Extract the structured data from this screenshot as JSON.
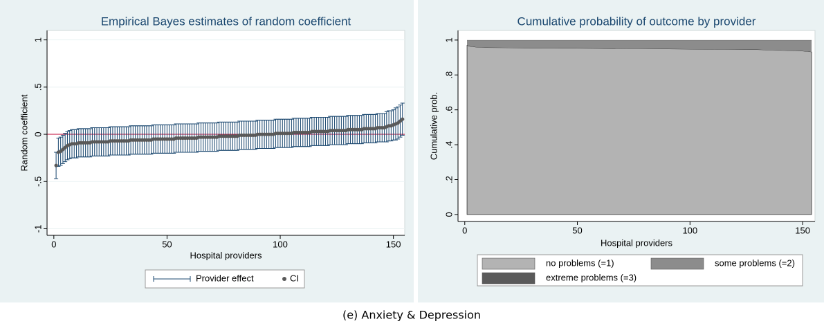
{
  "chart_data": [
    {
      "type": "errorbar",
      "title": "Empirical Bayes estimates of random coefficient",
      "x_label": "Hospital providers",
      "y_label": "Random coefficient",
      "x": [
        1,
        2,
        3,
        4,
        5,
        6,
        7,
        8,
        9,
        10,
        11,
        12,
        13,
        14,
        15,
        16,
        17,
        18,
        19,
        20,
        21,
        22,
        23,
        24,
        25,
        26,
        27,
        28,
        29,
        30,
        31,
        32,
        33,
        34,
        35,
        36,
        37,
        38,
        39,
        40,
        41,
        42,
        43,
        44,
        45,
        46,
        47,
        48,
        49,
        50,
        51,
        52,
        53,
        54,
        55,
        56,
        57,
        58,
        59,
        60,
        61,
        62,
        63,
        64,
        65,
        66,
        67,
        68,
        69,
        70,
        71,
        72,
        73,
        74,
        75,
        76,
        77,
        78,
        79,
        80,
        81,
        82,
        83,
        84,
        85,
        86,
        87,
        88,
        89,
        90,
        91,
        92,
        93,
        94,
        95,
        96,
        97,
        98,
        99,
        100,
        101,
        102,
        103,
        104,
        105,
        106,
        107,
        108,
        109,
        110,
        111,
        112,
        113,
        114,
        115,
        116,
        117,
        118,
        119,
        120,
        121,
        122,
        123,
        124,
        125,
        126,
        127,
        128,
        129,
        130,
        131,
        132,
        133,
        134,
        135,
        136,
        137,
        138,
        139,
        140,
        141,
        142,
        143,
        144,
        145,
        146,
        147,
        148,
        149,
        150,
        151,
        152,
        153,
        154
      ],
      "series": [
        {
          "name": "Provider effect",
          "color": "#1a476f",
          "values": [
            -0.33,
            -0.19,
            -0.18,
            -0.16,
            -0.14,
            -0.12,
            -0.11,
            -0.1,
            -0.1,
            -0.1,
            -0.09,
            -0.09,
            -0.09,
            -0.09,
            -0.09,
            -0.09,
            -0.08,
            -0.08,
            -0.08,
            -0.08,
            -0.08,
            -0.08,
            -0.08,
            -0.08,
            -0.07,
            -0.07,
            -0.07,
            -0.07,
            -0.07,
            -0.07,
            -0.07,
            -0.07,
            -0.07,
            -0.06,
            -0.06,
            -0.06,
            -0.06,
            -0.06,
            -0.06,
            -0.06,
            -0.06,
            -0.06,
            -0.06,
            -0.05,
            -0.05,
            -0.05,
            -0.05,
            -0.05,
            -0.05,
            -0.05,
            -0.05,
            -0.05,
            -0.05,
            -0.04,
            -0.04,
            -0.04,
            -0.04,
            -0.04,
            -0.04,
            -0.04,
            -0.04,
            -0.04,
            -0.04,
            -0.03,
            -0.03,
            -0.03,
            -0.03,
            -0.03,
            -0.03,
            -0.03,
            -0.03,
            -0.03,
            -0.02,
            -0.02,
            -0.02,
            -0.02,
            -0.02,
            -0.02,
            -0.02,
            -0.02,
            -0.02,
            -0.01,
            -0.01,
            -0.01,
            -0.01,
            -0.01,
            -0.01,
            -0.01,
            -0.01,
            0,
            0,
            0,
            0,
            0,
            0,
            0,
            0,
            0.01,
            0.01,
            0.01,
            0.01,
            0.01,
            0.01,
            0.01,
            0.01,
            0.02,
            0.02,
            0.02,
            0.02,
            0.02,
            0.02,
            0.02,
            0.02,
            0.03,
            0.03,
            0.03,
            0.03,
            0.03,
            0.03,
            0.03,
            0.03,
            0.04,
            0.04,
            0.04,
            0.04,
            0.04,
            0.04,
            0.04,
            0.04,
            0.05,
            0.05,
            0.05,
            0.05,
            0.05,
            0.05,
            0.05,
            0.06,
            0.06,
            0.06,
            0.06,
            0.06,
            0.06,
            0.07,
            0.07,
            0.07,
            0.07,
            0.08,
            0.09,
            0.09,
            0.1,
            0.11,
            0.12,
            0.14,
            0.16
          ],
          "errors": [
            0.14,
            0.15,
            0.15,
            0.15,
            0.15,
            0.15,
            0.15,
            0.15,
            0.15,
            0.15,
            0.15,
            0.15,
            0.15,
            0.15,
            0.15,
            0.15,
            0.15,
            0.15,
            0.15,
            0.15,
            0.15,
            0.15,
            0.15,
            0.15,
            0.15,
            0.15,
            0.15,
            0.15,
            0.15,
            0.15,
            0.15,
            0.15,
            0.15,
            0.15,
            0.15,
            0.15,
            0.15,
            0.15,
            0.15,
            0.15,
            0.15,
            0.15,
            0.15,
            0.15,
            0.15,
            0.15,
            0.15,
            0.15,
            0.15,
            0.15,
            0.15,
            0.15,
            0.15,
            0.15,
            0.15,
            0.15,
            0.15,
            0.15,
            0.15,
            0.15,
            0.15,
            0.15,
            0.15,
            0.15,
            0.15,
            0.15,
            0.15,
            0.15,
            0.15,
            0.15,
            0.15,
            0.15,
            0.15,
            0.15,
            0.15,
            0.15,
            0.15,
            0.15,
            0.15,
            0.15,
            0.15,
            0.15,
            0.15,
            0.15,
            0.15,
            0.15,
            0.15,
            0.15,
            0.15,
            0.15,
            0.15,
            0.15,
            0.15,
            0.15,
            0.15,
            0.15,
            0.15,
            0.15,
            0.15,
            0.15,
            0.15,
            0.15,
            0.15,
            0.15,
            0.15,
            0.15,
            0.15,
            0.15,
            0.15,
            0.15,
            0.15,
            0.15,
            0.15,
            0.15,
            0.15,
            0.15,
            0.15,
            0.15,
            0.15,
            0.15,
            0.15,
            0.15,
            0.15,
            0.15,
            0.15,
            0.15,
            0.15,
            0.15,
            0.15,
            0.15,
            0.15,
            0.15,
            0.15,
            0.15,
            0.15,
            0.15,
            0.15,
            0.15,
            0.15,
            0.15,
            0.15,
            0.15,
            0.15,
            0.15,
            0.15,
            0.15,
            0.16,
            0.16,
            0.16,
            0.16,
            0.17,
            0.17,
            0.17,
            0.17
          ]
        }
      ],
      "marker": {
        "name": "CI",
        "color": "#595959"
      },
      "refline": {
        "value": 0,
        "color": "#c10534"
      },
      "xlim": [
        -3,
        155
      ],
      "xticks": [
        0,
        50,
        100,
        150
      ],
      "ylim": [
        -1.07,
        1.1
      ],
      "yticks": [
        {
          "value": -1,
          "label": "-1"
        },
        {
          "value": -0.5,
          "label": "-.5"
        },
        0,
        {
          "value": 0.5,
          "label": ".5"
        },
        1
      ],
      "grid": true
    },
    {
      "type": "stacked_area",
      "title": "Cumulative probability of outcome by provider",
      "x_label": "Hospital providers",
      "y_label": "Cumulative prob.",
      "x": [
        1,
        2,
        3,
        5,
        8,
        10,
        20,
        50,
        100,
        130,
        150,
        154
      ],
      "series": [
        {
          "name": "no problems (=1)",
          "color": "#b3b3b3",
          "values": [
            0.97,
            0.965,
            0.963,
            0.96,
            0.958,
            0.957,
            0.956,
            0.953,
            0.948,
            0.945,
            0.937,
            0.932
          ]
        },
        {
          "name": "some problems (=2)",
          "color": "#8c8c8c",
          "values": [
            0.028,
            0.033,
            0.035,
            0.038,
            0.04,
            0.041,
            0.042,
            0.045,
            0.05,
            0.053,
            0.061,
            0.066
          ]
        },
        {
          "name": "extreme problems (=3)",
          "color": "#5a5a5a",
          "values": [
            0.002,
            0.002,
            0.002,
            0.002,
            0.002,
            0.002,
            0.002,
            0.002,
            0.002,
            0.002,
            0.002,
            0.002
          ]
        }
      ],
      "xlim": [
        -3,
        155.5
      ],
      "xticks": [
        0,
        50,
        100,
        150
      ],
      "ylim": [
        -0.04,
        1.055
      ],
      "yticks": [
        0,
        {
          "value": 0.2,
          "label": ".2"
        },
        {
          "value": 0.4,
          "label": ".4"
        },
        {
          "value": 0.6,
          "label": ".6"
        },
        {
          "value": 0.8,
          "label": ".8"
        },
        1
      ],
      "grid": false
    }
  ],
  "caption": "(e) Anxiety & Depression"
}
